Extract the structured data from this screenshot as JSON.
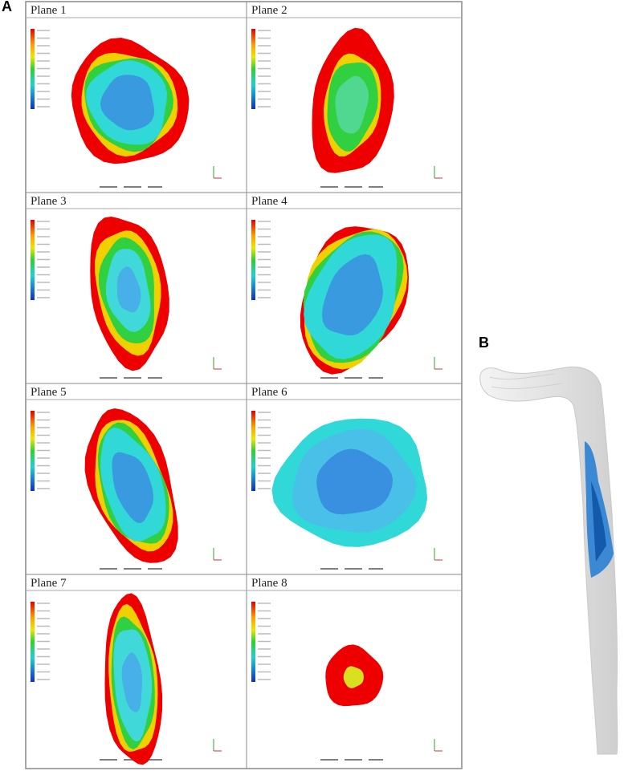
{
  "figure": {
    "panel_a": {
      "label": "A",
      "planes": [
        "Plane 1",
        "Plane 2",
        "Plane 3",
        "Plane 4",
        "Plane 5",
        "Plane 6",
        "Plane 7",
        "Plane 8"
      ]
    },
    "panel_b": {
      "label": "B"
    }
  }
}
